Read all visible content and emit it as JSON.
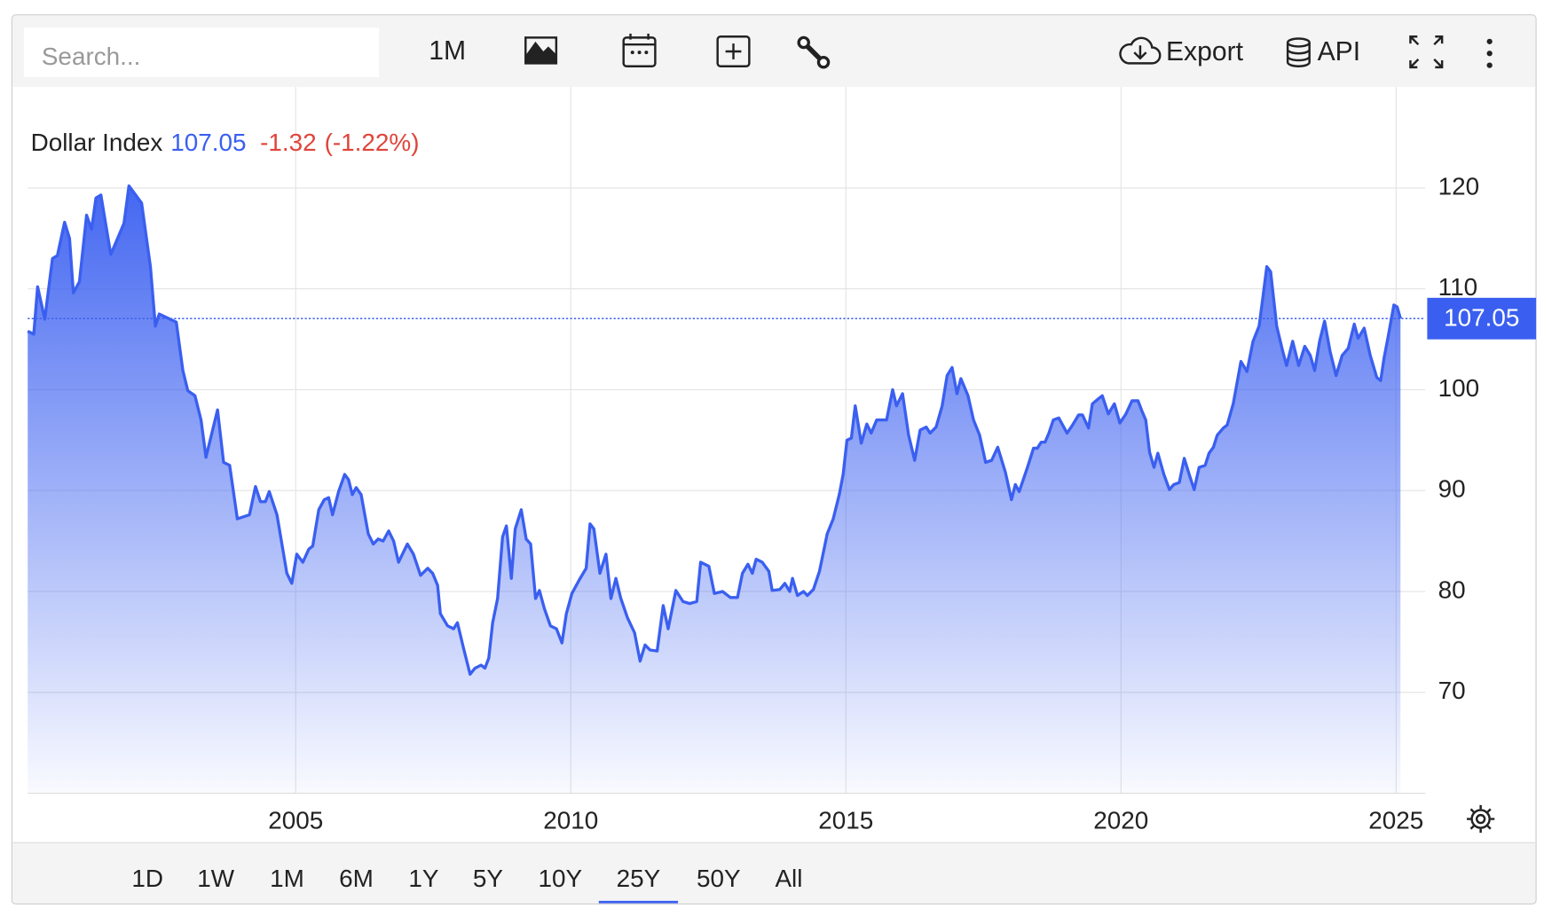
{
  "toolbar": {
    "search_placeholder": "Search...",
    "interval": "1M",
    "export": "Export",
    "api": "API"
  },
  "ranges": {
    "options": [
      "1D",
      "1W",
      "1M",
      "6M",
      "1Y",
      "5Y",
      "10Y",
      "25Y",
      "50Y",
      "All"
    ],
    "active": "25Y"
  },
  "chart_data": {
    "type": "area",
    "change": -1.32,
    "change_percent": "(-1.22%)",
    "x": [
      2000.13,
      2000.24,
      2000.31,
      2000.44,
      2000.58,
      2000.67,
      2000.8,
      2000.89,
      2000.96,
      2001.07,
      2001.2,
      2001.29,
      2001.37,
      2001.46,
      2001.64,
      2001.88,
      2001.97,
      2002.2,
      2002.36,
      2002.45,
      2002.52,
      2002.83,
      2002.95,
      2003.04,
      2003.17,
      2003.28,
      2003.37,
      2003.58,
      2003.69,
      2003.8,
      2003.94,
      2004.16,
      2004.27,
      2004.36,
      2004.45,
      2004.52,
      2004.66,
      2004.84,
      2004.93,
      2005.02,
      2005.13,
      2005.24,
      2005.31,
      2005.42,
      2005.52,
      2005.6,
      2005.67,
      2005.78,
      2005.89,
      2005.96,
      2006.03,
      2006.1,
      2006.19,
      2006.32,
      2006.41,
      2006.5,
      2006.59,
      2006.69,
      2006.78,
      2006.87,
      2007.03,
      2007.14,
      2007.27,
      2007.4,
      2007.49,
      2007.58,
      2007.63,
      2007.76,
      2007.87,
      2007.94,
      2008.05,
      2008.17,
      2008.26,
      2008.37,
      2008.44,
      2008.51,
      2008.58,
      2008.67,
      2008.76,
      2008.83,
      2008.92,
      2008.99,
      2009.1,
      2009.19,
      2009.27,
      2009.36,
      2009.43,
      2009.52,
      2009.63,
      2009.74,
      2009.84,
      2009.92,
      2010.02,
      2010.17,
      2010.28,
      2010.35,
      2010.42,
      2010.53,
      2010.64,
      2010.73,
      2010.82,
      2010.91,
      2011.03,
      2011.16,
      2011.26,
      2011.35,
      2011.44,
      2011.57,
      2011.68,
      2011.77,
      2011.91,
      2012.04,
      2012.16,
      2012.29,
      2012.36,
      2012.51,
      2012.61,
      2012.76,
      2012.9,
      2013.03,
      2013.12,
      2013.22,
      2013.3,
      2013.37,
      2013.48,
      2013.6,
      2013.66,
      2013.8,
      2013.89,
      2013.98,
      2014.03,
      2014.12,
      2014.23,
      2014.3,
      2014.41,
      2014.52,
      2014.66,
      2014.77,
      2014.88,
      2014.95,
      2015.02,
      2015.1,
      2015.17,
      2015.28,
      2015.38,
      2015.46,
      2015.56,
      2015.64,
      2015.74,
      2015.85,
      2015.92,
      2016.03,
      2016.14,
      2016.25,
      2016.35,
      2016.46,
      2016.53,
      2016.64,
      2016.75,
      2016.84,
      2016.93,
      2017.02,
      2017.09,
      2017.22,
      2017.32,
      2017.43,
      2017.54,
      2017.65,
      2017.76,
      2017.9,
      2018.01,
      2018.08,
      2018.15,
      2018.3,
      2018.41,
      2018.48,
      2018.55,
      2018.62,
      2018.69,
      2018.77,
      2018.87,
      2019.02,
      2019.12,
      2019.23,
      2019.3,
      2019.41,
      2019.48,
      2019.59,
      2019.66,
      2019.77,
      2019.88,
      2019.98,
      2020.09,
      2020.2,
      2020.31,
      2020.38,
      2020.45,
      2020.52,
      2020.6,
      2020.67,
      2020.78,
      2020.88,
      2020.96,
      2021.06,
      2021.15,
      2021.24,
      2021.33,
      2021.42,
      2021.53,
      2021.6,
      2021.68,
      2021.75,
      2021.86,
      2021.93,
      2022.04,
      2022.18,
      2022.29,
      2022.4,
      2022.51,
      2022.58,
      2022.65,
      2022.72,
      2022.83,
      2022.94,
      2023.01,
      2023.12,
      2023.23,
      2023.34,
      2023.44,
      2023.52,
      2023.61,
      2023.7,
      2023.8,
      2023.91,
      2024.02,
      2024.13,
      2024.24,
      2024.31,
      2024.42,
      2024.53,
      2024.65,
      2024.72,
      2024.78,
      2024.85,
      2024.96,
      2025.02,
      2025.08
    ],
    "series": [
      {
        "name": "Dollar Index",
        "color": "#3a5ff0",
        "values": [
          105.8,
          105.5,
          110.2,
          107.0,
          113.0,
          113.3,
          116.6,
          115.0,
          109.6,
          110.7,
          117.3,
          115.9,
          119.0,
          119.3,
          113.4,
          116.5,
          120.2,
          118.5,
          112.2,
          106.3,
          107.5,
          106.7,
          101.9,
          99.9,
          99.4,
          97.0,
          93.3,
          98.0,
          92.8,
          92.5,
          87.2,
          87.6,
          90.4,
          88.9,
          88.9,
          89.9,
          87.6,
          81.8,
          80.8,
          83.7,
          82.9,
          84.2,
          84.5,
          88.1,
          89.1,
          89.3,
          87.6,
          89.9,
          91.6,
          91.1,
          89.6,
          90.3,
          89.6,
          85.7,
          84.7,
          85.2,
          85.0,
          86.0,
          85.0,
          82.9,
          84.7,
          83.7,
          81.6,
          82.3,
          81.8,
          80.6,
          77.8,
          76.6,
          76.3,
          76.9,
          74.4,
          71.8,
          72.4,
          72.7,
          72.4,
          73.4,
          76.9,
          79.3,
          85.4,
          86.5,
          81.3,
          86.2,
          88.1,
          85.2,
          84.7,
          79.3,
          80.1,
          78.3,
          76.6,
          76.3,
          74.9,
          77.8,
          79.8,
          81.3,
          82.3,
          86.7,
          86.2,
          81.8,
          83.7,
          79.3,
          81.3,
          79.3,
          77.4,
          75.9,
          73.1,
          74.7,
          74.2,
          74.1,
          78.6,
          76.3,
          80.1,
          79.0,
          78.8,
          79.0,
          82.9,
          82.5,
          79.8,
          80.0,
          79.4,
          79.4,
          81.8,
          82.7,
          81.8,
          83.2,
          82.9,
          82.0,
          80.1,
          80.2,
          80.8,
          80.0,
          81.3,
          79.6,
          80.0,
          79.6,
          80.2,
          82.0,
          85.7,
          87.2,
          89.6,
          91.6,
          95.0,
          95.2,
          98.4,
          94.7,
          96.6,
          95.7,
          97.0,
          97.0,
          97.0,
          100.0,
          98.4,
          99.6,
          95.5,
          93.0,
          96.0,
          96.3,
          95.7,
          96.3,
          98.4,
          101.4,
          102.2,
          99.6,
          101.1,
          99.4,
          97.0,
          95.5,
          92.8,
          93.0,
          94.3,
          91.8,
          89.1,
          90.6,
          89.9,
          92.3,
          94.2,
          94.2,
          94.8,
          94.8,
          95.7,
          97.0,
          97.2,
          95.7,
          96.5,
          97.5,
          97.5,
          96.2,
          98.6,
          99.1,
          99.4,
          97.6,
          98.6,
          96.7,
          97.6,
          98.9,
          98.9,
          97.9,
          97.0,
          93.8,
          92.3,
          93.7,
          91.6,
          90.1,
          90.6,
          90.8,
          93.2,
          91.6,
          90.1,
          92.3,
          92.5,
          93.7,
          94.3,
          95.5,
          96.2,
          96.5,
          98.6,
          102.8,
          101.8,
          104.8,
          106.3,
          109.2,
          112.2,
          111.7,
          106.3,
          103.8,
          102.4,
          104.8,
          102.4,
          104.3,
          103.4,
          101.9,
          104.8,
          106.8,
          103.8,
          101.4,
          103.4,
          104.1,
          106.5,
          105.1,
          106.1,
          103.4,
          101.2,
          100.9,
          103.1,
          105.1,
          108.4,
          108.2,
          107.05
        ]
      }
    ],
    "xlim": [
      2000.13,
      2025.53
    ],
    "xticks": [
      2005,
      2010,
      2015,
      2020,
      2025
    ],
    "ylim": [
      60,
      130
    ],
    "yticks": [
      70,
      80,
      90,
      100,
      110,
      120
    ],
    "grid": true,
    "change_color": "#e0443b"
  }
}
